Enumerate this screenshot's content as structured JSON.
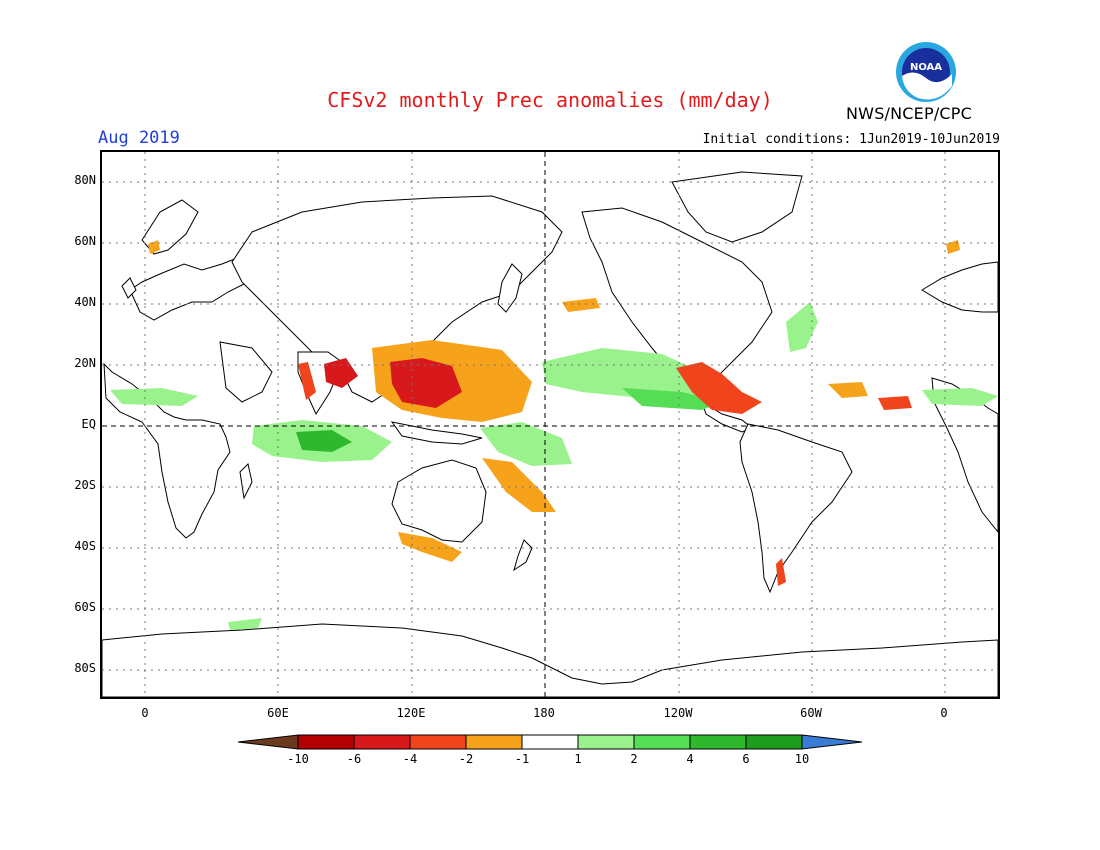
{
  "header": {
    "title": "CFSv2 monthly Prec anomalies (mm/day)",
    "month": "Aug 2019",
    "initial_conditions": "Initial conditions: 1Jun2019-10Jun2019",
    "agency": "NWS/NCEP/CPC",
    "logo_text": "NOAA"
  },
  "map": {
    "lat_labels": [
      "80N",
      "60N",
      "40N",
      "20N",
      "EQ",
      "20S",
      "40S",
      "60S",
      "80S"
    ],
    "lon_labels": [
      "0",
      "60E",
      "120E",
      "180",
      "120W",
      "60W",
      "0"
    ]
  },
  "colorbar": {
    "labels": [
      "-10",
      "-6",
      "-4",
      "-2",
      "-1",
      "1",
      "2",
      "4",
      "6",
      "10"
    ],
    "colors": [
      "#6b3a1e",
      "#b30000",
      "#d7191c",
      "#f0441c",
      "#f7a21b",
      "#ffffff",
      "#99f28c",
      "#55dd55",
      "#2eb82e",
      "#1e9c1e",
      "#3a7bd5"
    ]
  },
  "colors": {
    "title": "#e31a1c",
    "month": "#1f3fd6",
    "land_outline": "#000000"
  }
}
